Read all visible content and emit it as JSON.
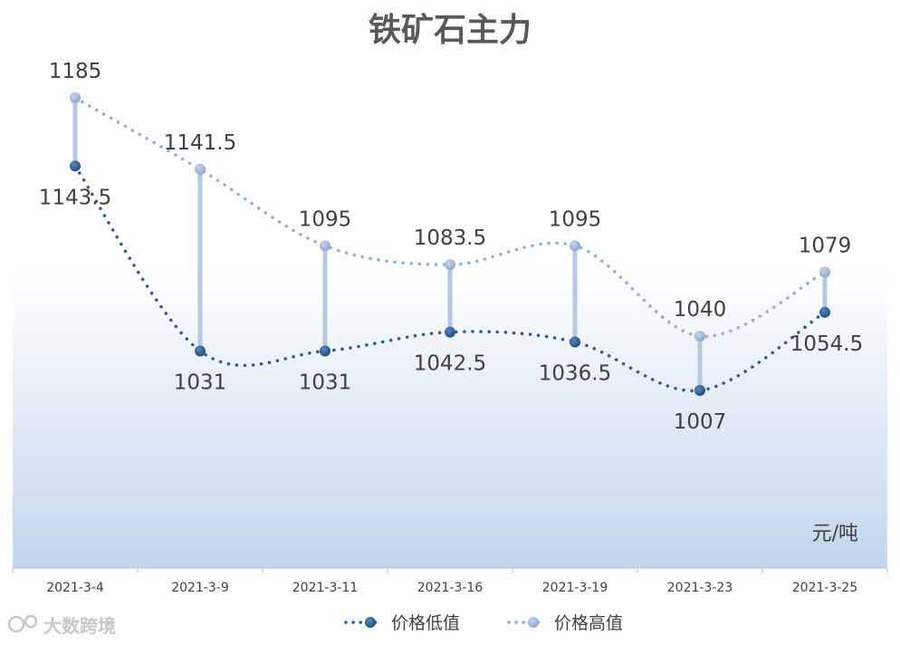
{
  "chart_data": {
    "type": "line",
    "title": "铁矿石主力",
    "unit_label": "元/吨",
    "categories": [
      "2021-3-4",
      "2021-3-9",
      "2021-3-11",
      "2021-3-16",
      "2021-3-19",
      "2021-3-23",
      "2021-3-25"
    ],
    "series": [
      {
        "name": "价格低值",
        "values": [
          1143.5,
          1031,
          1031,
          1042.5,
          1036.5,
          1007,
          1054.5
        ],
        "color": "#2e5b8f"
      },
      {
        "name": "价格高值",
        "values": [
          1185,
          1141.5,
          1095,
          1083.5,
          1095,
          1040,
          1079
        ],
        "color": "#8faed6"
      }
    ],
    "connector_color": "#b7c9e0",
    "grid": false,
    "legend_position": "bottom"
  },
  "watermark": {
    "text": "大数跨境"
  }
}
